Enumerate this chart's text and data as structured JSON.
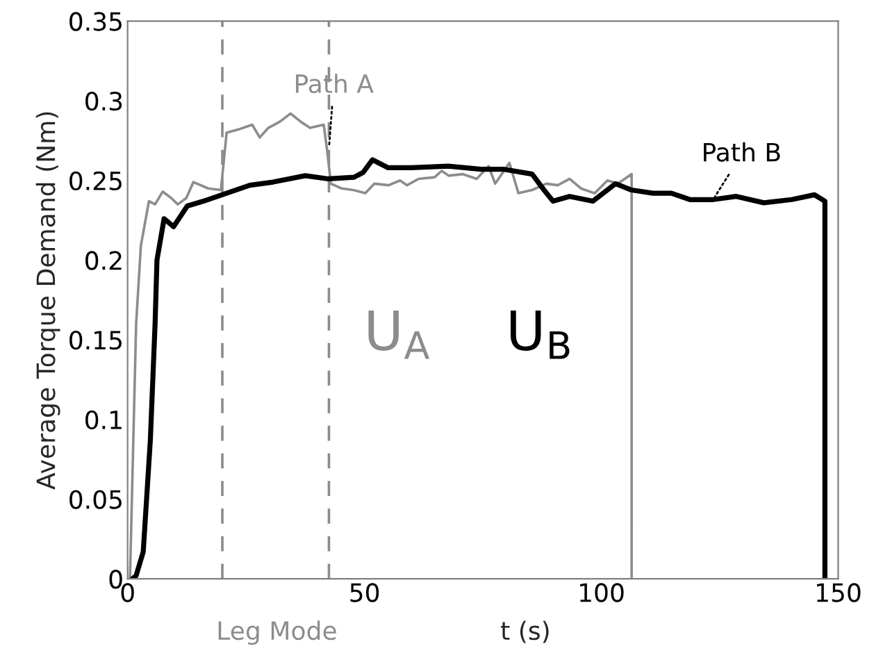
{
  "chart_data": {
    "type": "line",
    "xlabel": "t (s)",
    "ylabel": "Average Torque Demand (Nm)",
    "xlim": [
      0,
      150
    ],
    "ylim": [
      0,
      0.35
    ],
    "xticks": [
      0,
      50,
      100,
      150
    ],
    "yticks": [
      0,
      0.05,
      0.1,
      0.15,
      0.2,
      0.25,
      0.3,
      0.35
    ],
    "grid": false,
    "legend": false,
    "marker": "none",
    "line_style": "solid",
    "series": [
      {
        "color": "#8c8c8c",
        "x": [
          0.5,
          1.8,
          2.8,
          4.5,
          5.8,
          7.4,
          9.2,
          10.6,
          12.4,
          13.9,
          17,
          19.7,
          20.9,
          23.4,
          26.3,
          27.9,
          29.7,
          32.2,
          34.4,
          36.5,
          38.5,
          41.4,
          42.2,
          42.9,
          45.2,
          47.6,
          50.2,
          52.1,
          55.1,
          57.5,
          59,
          61.4,
          64.8,
          66.3,
          67.8,
          70.7,
          73.7,
          76.2,
          77.6,
          80.6,
          82.5,
          85.4,
          88.4,
          90.8,
          93.3,
          95.7,
          98.6,
          101.3,
          103.5,
          106.4,
          106.4
        ],
        "values": [
          0,
          0.16,
          0.209,
          0.237,
          0.235,
          0.243,
          0.239,
          0.235,
          0.239,
          0.249,
          0.245,
          0.244,
          0.28,
          0.282,
          0.285,
          0.277,
          0.283,
          0.287,
          0.292,
          0.287,
          0.283,
          0.285,
          0.267,
          0.248,
          0.245,
          0.244,
          0.242,
          0.248,
          0.247,
          0.25,
          0.247,
          0.251,
          0.252,
          0.256,
          0.253,
          0.254,
          0.251,
          0.259,
          0.248,
          0.261,
          0.242,
          0.244,
          0.248,
          0.247,
          0.251,
          0.245,
          0.242,
          0.25,
          0.248,
          0.254,
          0
        ]
      },
      {
        "color": "#000000",
        "x": [
          1,
          1.8,
          3.3,
          4.8,
          5.8,
          6.2,
          7.7,
          9.7,
          12.6,
          16,
          20.9,
          25.8,
          30.7,
          37.5,
          42.4,
          47.8,
          49.7,
          51.7,
          55,
          59.9,
          67.7,
          74.6,
          79.5,
          85.4,
          87.9,
          89.8,
          93.3,
          98.2,
          103,
          106.4,
          110.9,
          114.8,
          118.7,
          123.6,
          128.5,
          134.3,
          140.2,
          145,
          147.2,
          147.2
        ],
        "values": [
          0,
          0.002,
          0.017,
          0.087,
          0.16,
          0.2,
          0.226,
          0.221,
          0.234,
          0.237,
          0.242,
          0.247,
          0.249,
          0.253,
          0.251,
          0.252,
          0.255,
          0.263,
          0.258,
          0.258,
          0.259,
          0.257,
          0.257,
          0.254,
          0.244,
          0.237,
          0.24,
          0.237,
          0.248,
          0.244,
          0.242,
          0.242,
          0.238,
          0.238,
          0.24,
          0.236,
          0.238,
          0.241,
          0.237,
          0
        ]
      }
    ],
    "ref_lines": [
      {
        "axis": "x",
        "value": 20,
        "color": "#8c8c8c",
        "line_style": "dashed"
      },
      {
        "axis": "x",
        "value": 42.5,
        "color": "#8c8c8c",
        "line_style": "dashed"
      }
    ],
    "annotations": [
      {
        "text": "Path A",
        "x": 42.5,
        "y": 0.27
      },
      {
        "text": "Path B",
        "x": 123.6,
        "y": 0.238
      },
      "U$_{A}$",
      "U$_{B}$",
      "Leg Mode"
    ]
  }
}
